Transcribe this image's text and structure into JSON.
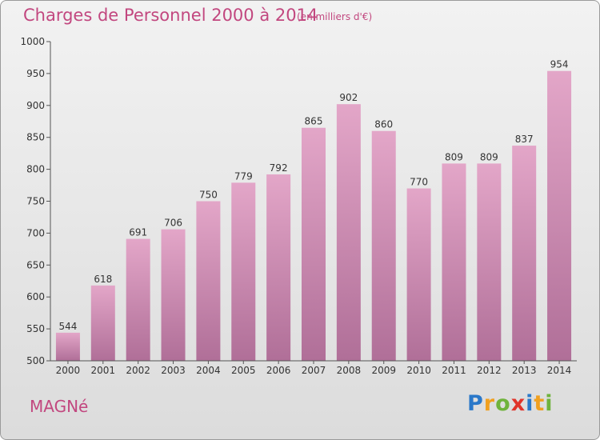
{
  "chart_data": {
    "type": "bar",
    "title": "Charges de Personnel 2000 à 2014",
    "subtitle": "(en milliers d'€)",
    "categories": [
      "2000",
      "2001",
      "2002",
      "2003",
      "2004",
      "2005",
      "2006",
      "2007",
      "2008",
      "2009",
      "2010",
      "2011",
      "2012",
      "2013",
      "2014"
    ],
    "values": [
      544,
      618,
      691,
      706,
      750,
      779,
      792,
      865,
      902,
      860,
      770,
      809,
      809,
      837,
      954
    ],
    "ylim": [
      500,
      1000
    ],
    "yticks": [
      500,
      550,
      600,
      650,
      700,
      750,
      800,
      850,
      900,
      950,
      1000
    ],
    "xlabel": "",
    "ylabel": "",
    "grid": false,
    "colors": {
      "bar_top": "#e3a6c8",
      "bar_bottom": "#b06f98",
      "text": "#c2477f"
    }
  },
  "commune": "MAGNé",
  "logo": {
    "letters": [
      "P",
      "r",
      "o",
      "x",
      "i",
      "t",
      "i"
    ],
    "colors": [
      "#2a78c9",
      "#f0a020",
      "#6fb33c",
      "#e0342a",
      "#2a78c9",
      "#f0a020",
      "#6fb33c"
    ]
  }
}
